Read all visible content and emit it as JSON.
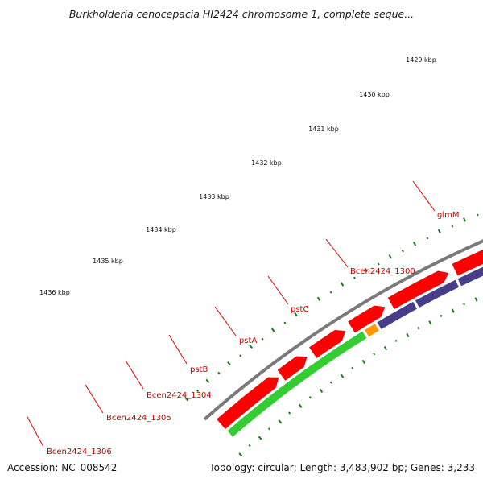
{
  "title": "Burkholderia cenocepacia HI2424 chromosome 1, complete seque...",
  "footer": {
    "accession_label": "Accession:",
    "accession": "NC_008542",
    "topology_label": "Topology:",
    "topology": "circular",
    "length_label": "Length:",
    "length": "3,483,902 bp",
    "genes_label": "Genes:",
    "genes": "3,233"
  },
  "colors": {
    "backbone": "#7a7a7a",
    "forward_gene": "#ff0000",
    "reverse_gene": "#483d8b",
    "ticks": "#1a7a1a",
    "label_text": "#cc0000",
    "leader": "#dd0000"
  },
  "ticks": [
    {
      "label": "1429 kbp"
    },
    {
      "label": "1430 kbp"
    },
    {
      "label": "1431 kbp"
    },
    {
      "label": "1432 kbp"
    },
    {
      "label": "1433 kbp"
    },
    {
      "label": "1434 kbp"
    },
    {
      "label": "1435 kbp"
    },
    {
      "label": "1436 kbp"
    }
  ],
  "genes": [
    {
      "name": "glmM",
      "strand": "reverse",
      "color": "#00cccc"
    },
    {
      "name": "Bcen2424_1300",
      "strand": "reverse",
      "color": "#483d8b"
    },
    {
      "name": "pstC",
      "strand": "reverse",
      "color": "#483d8b"
    },
    {
      "name": "pstA",
      "strand": "reverse",
      "color": "#483d8b"
    },
    {
      "name": "pstB",
      "strand": "reverse",
      "color": "#483d8b"
    },
    {
      "name": "Bcen2424_1304",
      "strand": "reverse",
      "color": "#483d8b"
    },
    {
      "name": "Bcen2424_1305",
      "strand": "reverse",
      "color": "#ff9900"
    },
    {
      "name": "Bcen2424_1306",
      "strand": "reverse",
      "color": "#33cc33"
    }
  ]
}
